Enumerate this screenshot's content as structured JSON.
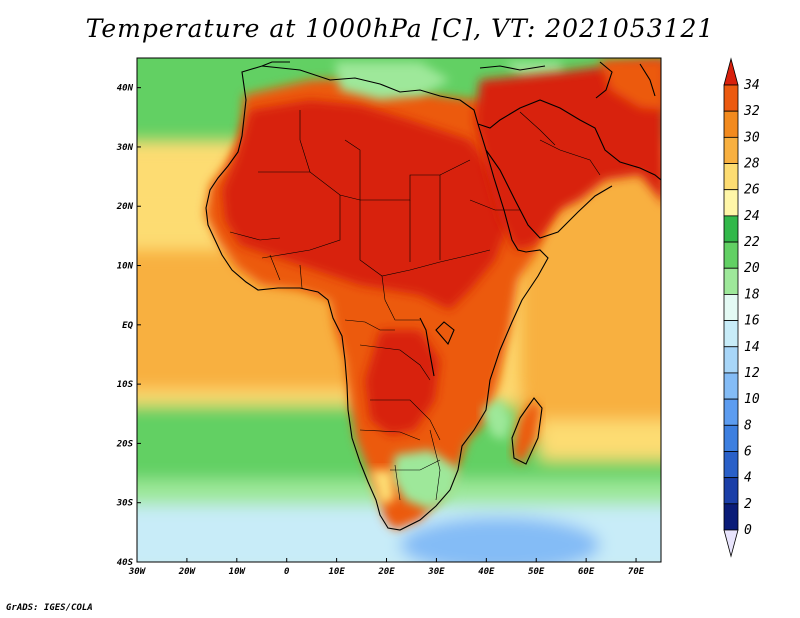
{
  "title": "Temperature at 1000hPa [C], VT: 2021053121",
  "credit": "GrADS: IGES/COLA",
  "map": {
    "lon_range": [
      -30,
      75
    ],
    "lat_range": [
      -40,
      45
    ],
    "lon_ticks": [
      "30W",
      "20W",
      "10W",
      "0",
      "10E",
      "20E",
      "30E",
      "40E",
      "50E",
      "60E",
      "70E"
    ],
    "lat_ticks": [
      "40N",
      "30N",
      "20N",
      "10N",
      "EQ",
      "10S",
      "20S",
      "30S",
      "40S"
    ]
  },
  "colorbar": {
    "levels": [
      "0",
      "2",
      "4",
      "6",
      "8",
      "10",
      "12",
      "14",
      "16",
      "18",
      "20",
      "22",
      "24",
      "26",
      "28",
      "30",
      "32",
      "34"
    ],
    "colors": [
      "#0a1c78",
      "#1b3fa8",
      "#2a60c8",
      "#3d7fe0",
      "#5c9cf0",
      "#84bcf6",
      "#a8d6f8",
      "#c8ecf8",
      "#e4faf4",
      "#9ee89a",
      "#62d064",
      "#32b84a",
      "#fff6a8",
      "#fddc72",
      "#f8b040",
      "#f28a1e",
      "#ec5a10",
      "#d8200c"
    ]
  },
  "palette": {
    "ocean_warm": "#f8b040",
    "ocean_mid": "#fddc72",
    "ocean_cool": "#62d064",
    "ocean_cold": "#c8ecf8",
    "land_hot": "#d8200c",
    "land_warm": "#ec5a10",
    "land_mild": "#9ee89a"
  }
}
